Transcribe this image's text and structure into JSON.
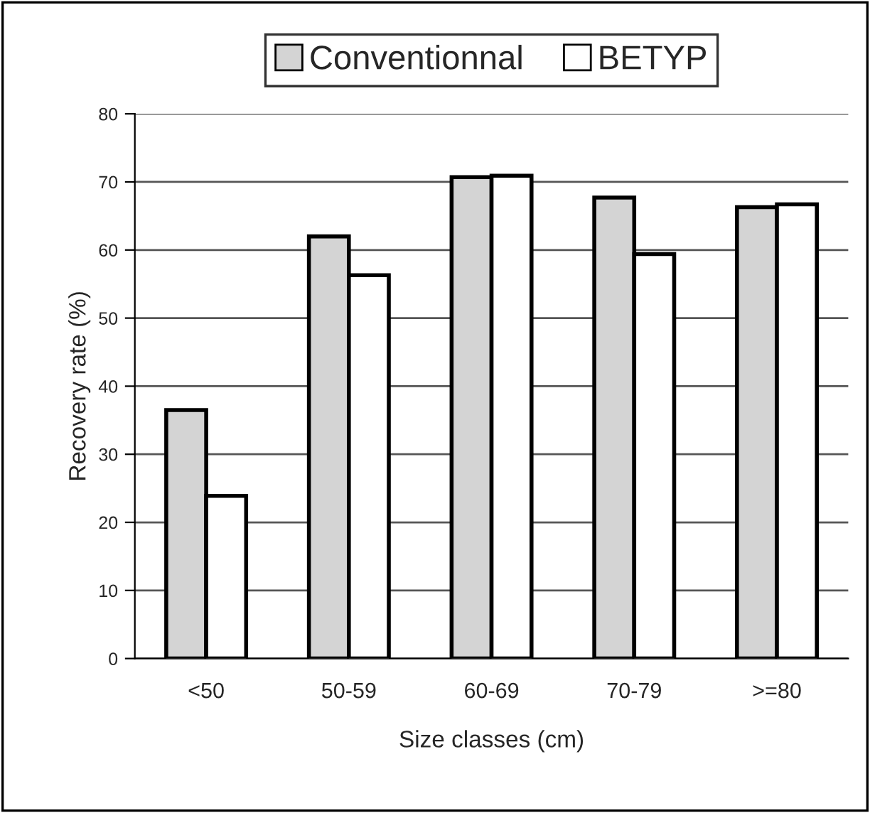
{
  "chart_data": {
    "type": "bar",
    "xlabel": "Size classes (cm)",
    "ylabel": "Recovery rate (%)",
    "categories": [
      "<50",
      "50-59",
      "60-69",
      "70-79",
      ">=80"
    ],
    "series": [
      {
        "name": "Conventionnal",
        "color": "#d4d4d4",
        "values": [
          36.5,
          62.0,
          70.7,
          67.7,
          66.3
        ]
      },
      {
        "name": "BETYP",
        "color": "#ffffff",
        "values": [
          23.9,
          56.3,
          70.9,
          59.4,
          66.7
        ]
      }
    ],
    "ylim": [
      0,
      80
    ],
    "yticks": [
      0,
      10,
      20,
      30,
      40,
      50,
      60,
      70,
      80
    ],
    "grid": "y",
    "legend": "top"
  }
}
